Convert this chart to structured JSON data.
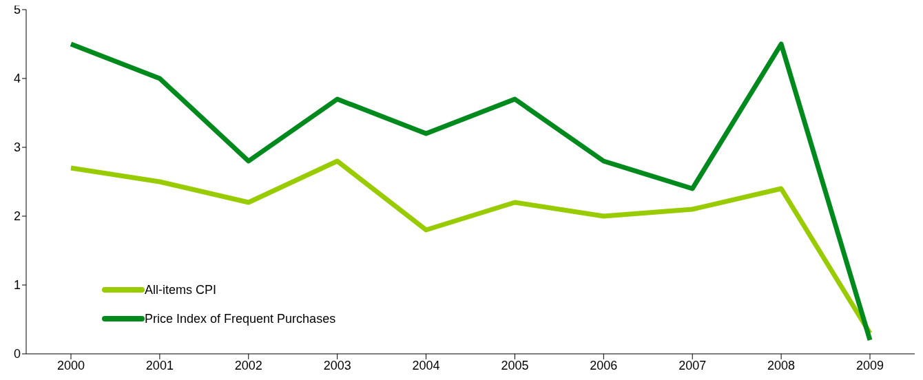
{
  "chart_data": {
    "type": "line",
    "categories": [
      "2000",
      "2001",
      "2002",
      "2003",
      "2004",
      "2005",
      "2006",
      "2007",
      "2008",
      "2009"
    ],
    "series": [
      {
        "name": "All-items CPI",
        "color": "#99cc00",
        "values": [
          2.7,
          2.5,
          2.2,
          2.8,
          1.8,
          2.2,
          2.0,
          2.1,
          2.4,
          0.3
        ]
      },
      {
        "name": "Price Index of Frequent Purchases",
        "color": "#008a1e",
        "values": [
          4.5,
          4.0,
          2.8,
          3.7,
          3.2,
          3.7,
          2.8,
          2.4,
          4.5,
          0.2
        ]
      }
    ],
    "ylim": [
      0,
      5
    ],
    "yticks": [
      0,
      1,
      2,
      3,
      4,
      5
    ],
    "grid": false,
    "legend": "bottom left",
    "marker": "none",
    "line_style": "solid"
  }
}
